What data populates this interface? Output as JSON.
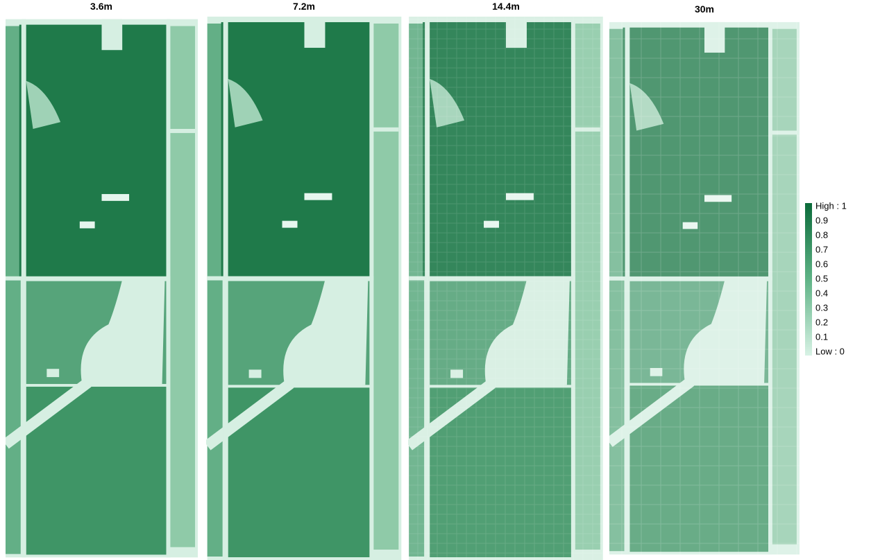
{
  "panels": [
    {
      "title": "3.6m"
    },
    {
      "title": "7.2m"
    },
    {
      "title": "14.4m"
    },
    {
      "title": "30m"
    }
  ],
  "legend": {
    "labels": [
      "High : 1",
      "0.9",
      "0.8",
      "0.7",
      "0.6",
      "0.5",
      "0.4",
      "0.3",
      "0.2",
      "0.1",
      "Low : 0"
    ]
  }
}
